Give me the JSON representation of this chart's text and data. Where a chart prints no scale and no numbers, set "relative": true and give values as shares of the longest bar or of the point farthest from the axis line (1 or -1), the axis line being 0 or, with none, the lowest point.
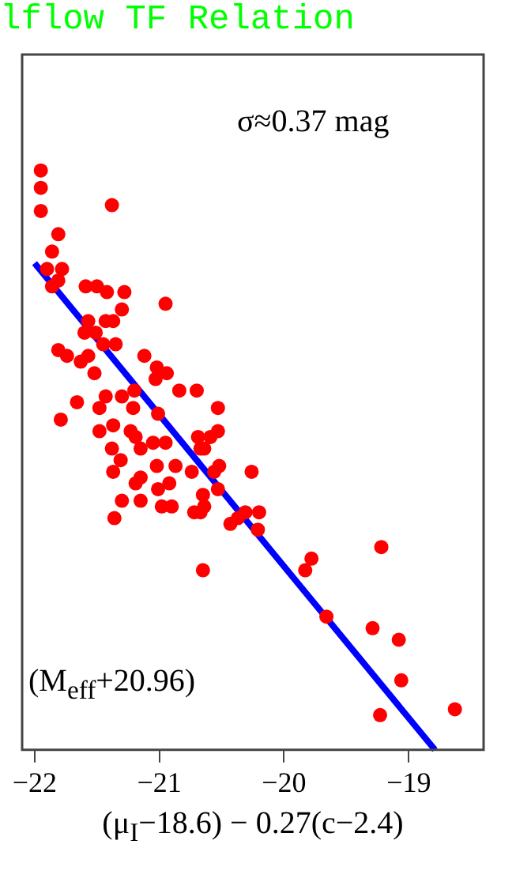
{
  "chart_data": {
    "type": "scatter",
    "title": "lflow TF Relation",
    "xlabel": "(μ$_{I}$−18.6) − 0.27(c−2.4)",
    "relative": true,
    "xlim": [
      -22.1,
      -18.4
    ],
    "xticks": [
      -22,
      -21,
      -20,
      -19
    ],
    "grid": false,
    "legend": false,
    "annotations": [
      "σ≈0.37 mag",
      "(M$_{eff}$+20.96)"
    ],
    "series": [
      {
        "marker": "circle",
        "color": "#ff0000",
        "x": [
          -21.95,
          -21.95,
          -21.95,
          -21.38,
          -21.81,
          -21.86,
          -21.9,
          -21.78,
          -21.81,
          -21.86,
          -21.59,
          -21.5,
          -21.42,
          -20.95,
          -21.28,
          -21.3,
          -21.37,
          -21.43,
          -21.57,
          -21.6,
          -21.51,
          -21.45,
          -21.35,
          -21.57,
          -21.74,
          -21.63,
          -21.81,
          -21.12,
          -21.02,
          -20.94,
          -21.03,
          -21.52,
          -21.2,
          -21.43,
          -21.3,
          -21.21,
          -20.7,
          -20.84,
          -21.01,
          -21.66,
          -21.79,
          -21.48,
          -21.37,
          -21.23,
          -21.19,
          -21.05,
          -20.95,
          -20.53,
          -20.53,
          -20.64,
          -20.69,
          -21.37,
          -21.19,
          -21.02,
          -21.15,
          -21.31,
          -20.67,
          -20.59,
          -21.48,
          -21.38,
          -21.3,
          -21.15,
          -21.01,
          -20.92,
          -20.65,
          -20.53,
          -20.56,
          -20.52,
          -20.67,
          -20.9,
          -20.74,
          -20.87,
          -20.26,
          -21.36,
          -21.15,
          -20.98,
          -20.72,
          -20.64,
          -20.43,
          -20.37,
          -20.31,
          -20.21,
          -20.2,
          -20.65,
          -19.83,
          -19.78,
          -19.66,
          -19.22,
          -19.29,
          -19.08,
          -19.06,
          -19.23,
          -18.63
        ],
        "values": [
          1.0,
          0.97,
          0.93,
          0.94,
          0.89,
          0.86,
          0.83,
          0.83,
          0.81,
          0.8,
          0.8,
          0.8,
          0.79,
          0.77,
          0.79,
          0.76,
          0.74,
          0.74,
          0.74,
          0.72,
          0.72,
          0.7,
          0.7,
          0.68,
          0.68,
          0.67,
          0.69,
          0.68,
          0.66,
          0.65,
          0.64,
          0.65,
          0.62,
          0.61,
          0.61,
          0.59,
          0.62,
          0.62,
          0.58,
          0.6,
          0.57,
          0.59,
          0.56,
          0.55,
          0.54,
          0.53,
          0.53,
          0.59,
          0.55,
          0.52,
          0.54,
          0.48,
          0.46,
          0.49,
          0.52,
          0.5,
          0.52,
          0.54,
          0.55,
          0.52,
          0.43,
          0.47,
          0.45,
          0.46,
          0.44,
          0.45,
          0.48,
          0.49,
          0.41,
          0.42,
          0.48,
          0.49,
          0.48,
          0.4,
          0.43,
          0.42,
          0.41,
          0.42,
          0.39,
          0.4,
          0.41,
          0.38,
          0.41,
          0.31,
          0.31,
          0.33,
          0.23,
          0.35,
          0.21,
          0.19,
          0.12,
          0.06,
          0.07
        ]
      },
      {
        "type": "line",
        "color": "#0000ff",
        "x": [
          -22,
          -18.79
        ],
        "values": [
          0.84,
          0
        ]
      }
    ]
  }
}
